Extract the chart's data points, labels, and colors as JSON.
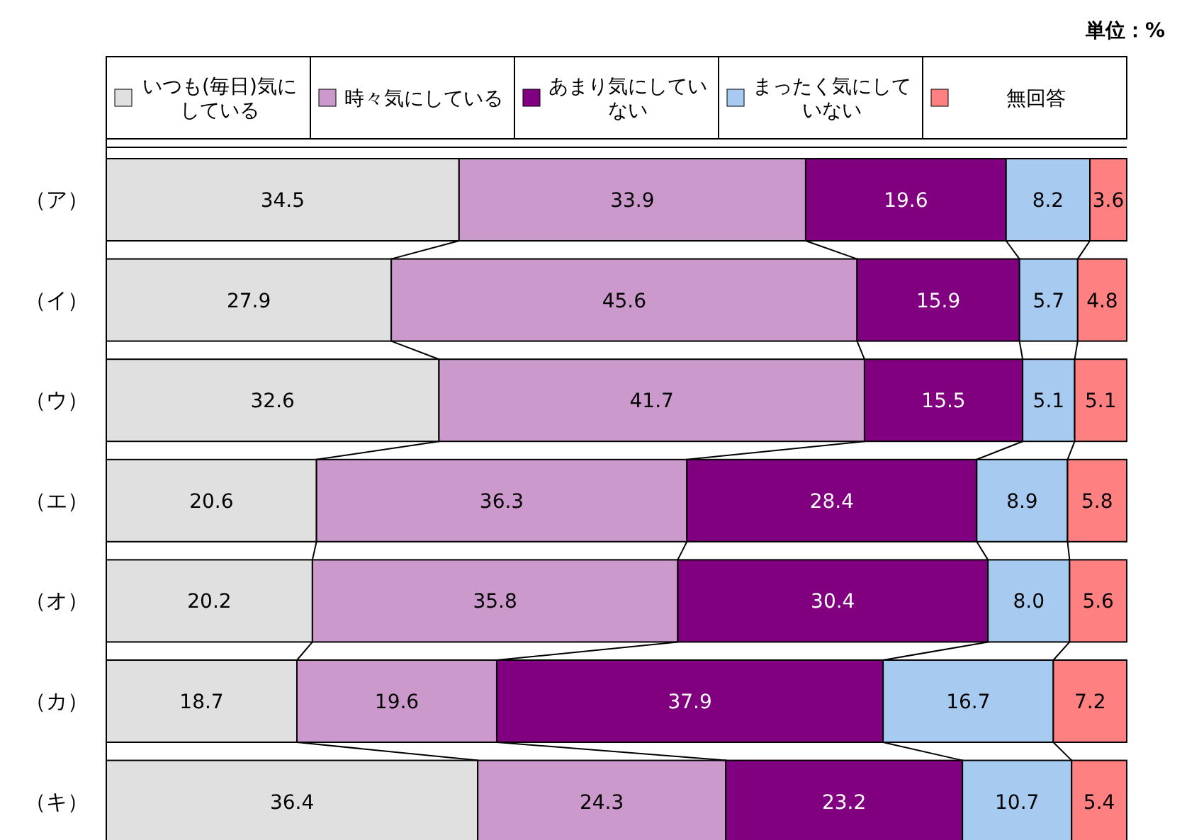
{
  "chart_data": {
    "type": "bar",
    "orientation": "horizontal",
    "stacked": true,
    "data_labels": true,
    "legend": "top",
    "annotations": [
      "単位：%"
    ],
    "categories": [
      "（ア）",
      "（イ）",
      "（ウ）",
      "（エ）",
      "（オ）",
      "（カ）",
      "（キ）"
    ],
    "series": [
      {
        "name": "いつも(毎日)気にしている",
        "color": "#e0e0e0",
        "values": [
          34.5,
          27.9,
          32.6,
          20.6,
          20.2,
          18.7,
          36.4
        ]
      },
      {
        "name": "時々気にしている",
        "color": "#cc99cc",
        "values": [
          33.9,
          45.6,
          41.7,
          36.3,
          35.8,
          19.6,
          24.3
        ]
      },
      {
        "name": "あまり気にしていない",
        "color": "#800080",
        "values": [
          19.6,
          15.9,
          15.5,
          28.4,
          30.4,
          37.9,
          23.2
        ]
      },
      {
        "name": "まったく気にしていない",
        "color": "#a6caf0",
        "values": [
          8.2,
          5.7,
          5.1,
          8.9,
          8.0,
          16.7,
          10.7
        ],
        "value_labels": [
          "8.2",
          "5.7",
          "5.1",
          "8.9",
          "8.0",
          "16.7",
          "10.7"
        ]
      },
      {
        "name": "無回答",
        "color": "#ff8080",
        "values": [
          3.6,
          4.8,
          5.1,
          5.8,
          5.6,
          7.2,
          5.4
        ]
      }
    ]
  }
}
